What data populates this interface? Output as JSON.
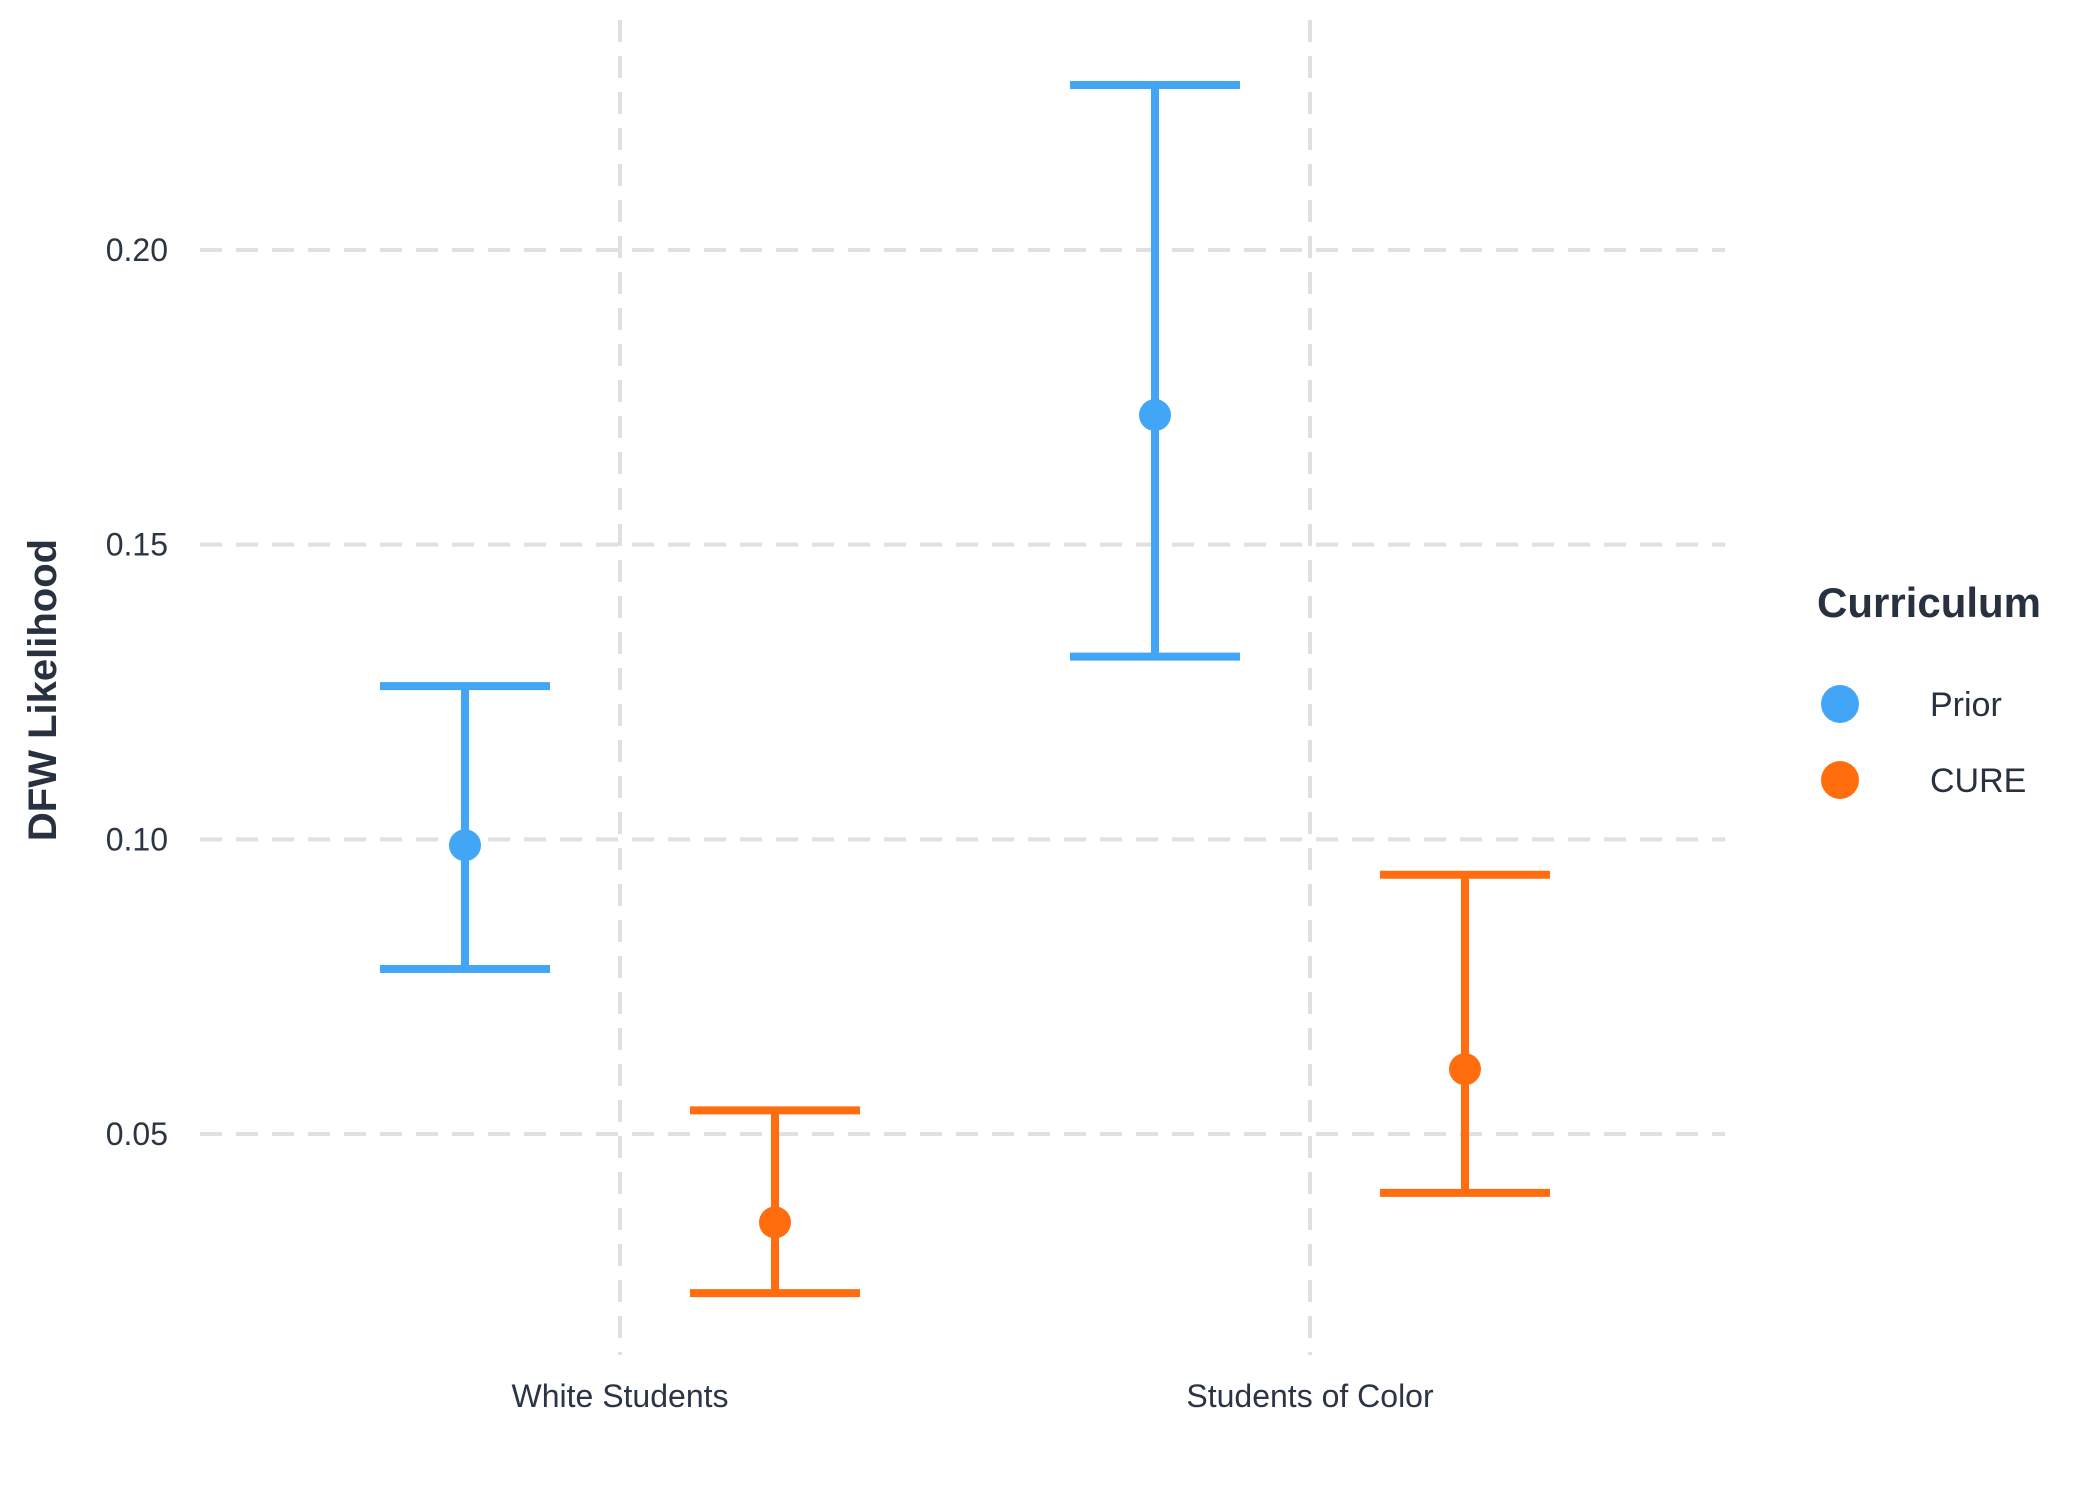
{
  "chart_data": {
    "type": "scatter",
    "title": "",
    "xlabel": "",
    "ylabel": "DFW Likelihood",
    "categories": [
      "White Students",
      "Students of Color"
    ],
    "ylim": [
      0.015,
      0.24
    ],
    "yticks": [
      0.05,
      0.1,
      0.15,
      0.2
    ],
    "ytick_labels": [
      "0.05",
      "0.10",
      "0.15",
      "0.20"
    ],
    "grid": true,
    "legend": {
      "title": "Curriculum",
      "position": "right"
    },
    "series": [
      {
        "name": "Prior",
        "color": "#42a5f5",
        "points": [
          {
            "category": "White Students",
            "y": 0.099,
            "lower": 0.078,
            "upper": 0.126
          },
          {
            "category": "Students of Color",
            "y": 0.172,
            "lower": 0.131,
            "upper": 0.228
          }
        ]
      },
      {
        "name": "CURE",
        "color": "#ff6d0f",
        "points": [
          {
            "category": "White Students",
            "y": 0.035,
            "lower": 0.023,
            "upper": 0.054
          },
          {
            "category": "Students of Color",
            "y": 0.061,
            "lower": 0.04,
            "upper": 0.094
          }
        ]
      }
    ]
  }
}
